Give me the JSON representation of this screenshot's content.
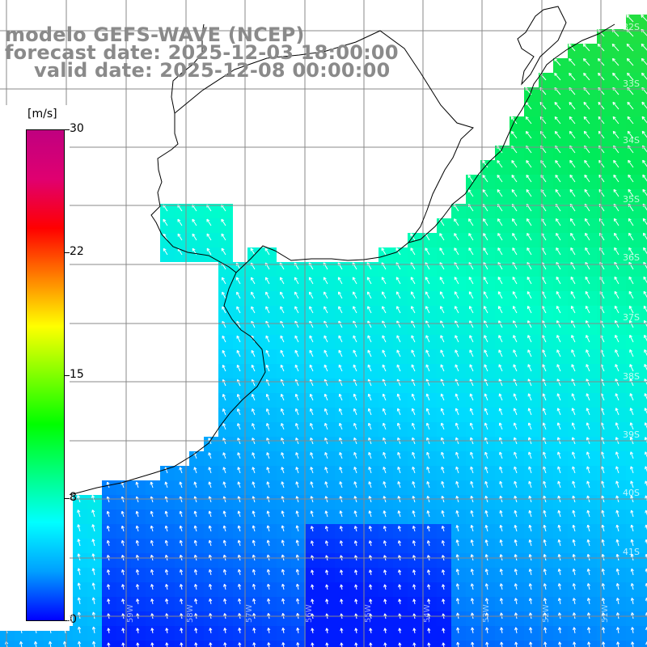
{
  "title": {
    "model": "modelo GEFS-WAVE (NCEP)",
    "forecast": "forecast date: 2025-12-03 18:00:00",
    "valid": "valid date: 2025-12-08 00:00:00"
  },
  "legend": {
    "unit": "[m/s]",
    "ticks": [
      "30",
      "22",
      "15",
      "8",
      "0"
    ],
    "colors": [
      "#0000ff",
      "#00a0ff",
      "#00ffff",
      "#00ff80",
      "#00ff00",
      "#80ff00",
      "#ffff00",
      "#ff8000",
      "#ff0000",
      "#e00070",
      "#c00080"
    ]
  },
  "lat_labels": [
    "32S",
    "33S",
    "34S",
    "35S",
    "36S",
    "37S",
    "38S",
    "39S",
    "40S",
    "41S"
  ],
  "lon_labels": [
    "61W",
    "60W",
    "59W",
    "58W",
    "57W",
    "56W",
    "55W",
    "54W",
    "53W",
    "52W",
    "51W"
  ],
  "map_colors": {
    "land": "#ffffff",
    "coast": "#000000",
    "grid": "#888888",
    "arrow": "#ffffff"
  }
}
